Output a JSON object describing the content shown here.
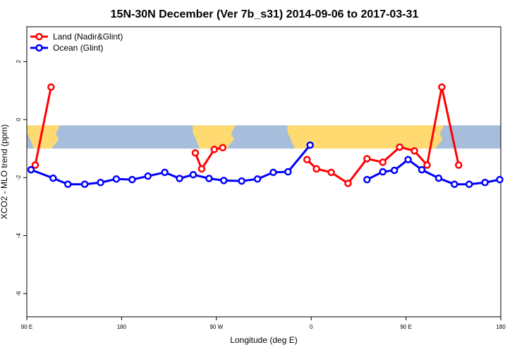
{
  "chart_data": {
    "type": "line",
    "title": "15N-30N December (Ver 7b_s31)   2014-09-06 to 2017-03-31",
    "xlabel": "Longitude (deg E)",
    "ylabel": "XCO2 - MLO trend (ppm)",
    "xlim": [
      90,
      540
    ],
    "ylim": [
      -6.8,
      3.2
    ],
    "x_ticks": [
      {
        "value": 90,
        "label": "90 E"
      },
      {
        "value": 180,
        "label": "180"
      },
      {
        "value": 270,
        "label": "90 W"
      },
      {
        "value": 360,
        "label": "0"
      },
      {
        "value": 450,
        "label": "90 E"
      },
      {
        "value": 540,
        "label": "180"
      }
    ],
    "y_ticks": [
      {
        "value": 2,
        "label": "2"
      },
      {
        "value": 0,
        "label": "0"
      },
      {
        "value": -2,
        "label": "-2"
      },
      {
        "value": -4,
        "label": "-4"
      },
      {
        "value": -6,
        "label": "-6"
      }
    ],
    "legend_position": "top-left",
    "grid": false,
    "series": [
      {
        "name": "Land (Nadir&Glint)",
        "color": "#ff0000",
        "segments": [
          {
            "x": [
              98,
              113
            ],
            "y": [
              -1.57,
              1.12
            ]
          },
          {
            "x": [
              250,
              256,
              268,
              276
            ],
            "y": [
              -1.15,
              -1.7,
              -1.03,
              -0.97
            ]
          },
          {
            "x": [
              356,
              365,
              379,
              395,
              413,
              428,
              444,
              458,
              470,
              484,
              500
            ],
            "y": [
              -1.38,
              -1.7,
              -1.82,
              -2.2,
              -1.35,
              -1.47,
              -0.95,
              -1.08,
              -1.57,
              1.12,
              -1.57
            ]
          }
        ]
      },
      {
        "name": "Ocean (Glint)",
        "color": "#0000ff",
        "segments": [
          {
            "x": [
              94,
              115,
              129,
              145,
              160,
              175,
              190,
              205,
              221,
              235,
              248,
              263,
              277,
              294,
              309,
              324,
              338,
              359
            ],
            "y": [
              -1.73,
              -2.02,
              -2.23,
              -2.23,
              -2.17,
              -2.05,
              -2.07,
              -1.95,
              -1.82,
              -2.03,
              -1.9,
              -2.03,
              -2.1,
              -2.12,
              -2.05,
              -1.82,
              -1.8,
              -0.88
            ]
          },
          {
            "x": [
              413,
              428,
              439,
              452,
              465,
              481,
              496,
              510,
              525,
              539
            ],
            "y": [
              -2.07,
              -1.8,
              -1.75,
              -1.38,
              -1.73,
              -2.02,
              -2.23,
              -2.23,
              -2.17,
              -2.07
            ]
          }
        ]
      }
    ],
    "background_map": {
      "y_range": [
        -1.0,
        -0.2
      ],
      "ocean_color": "#a6bddb",
      "land_color": "#ffda70"
    }
  }
}
